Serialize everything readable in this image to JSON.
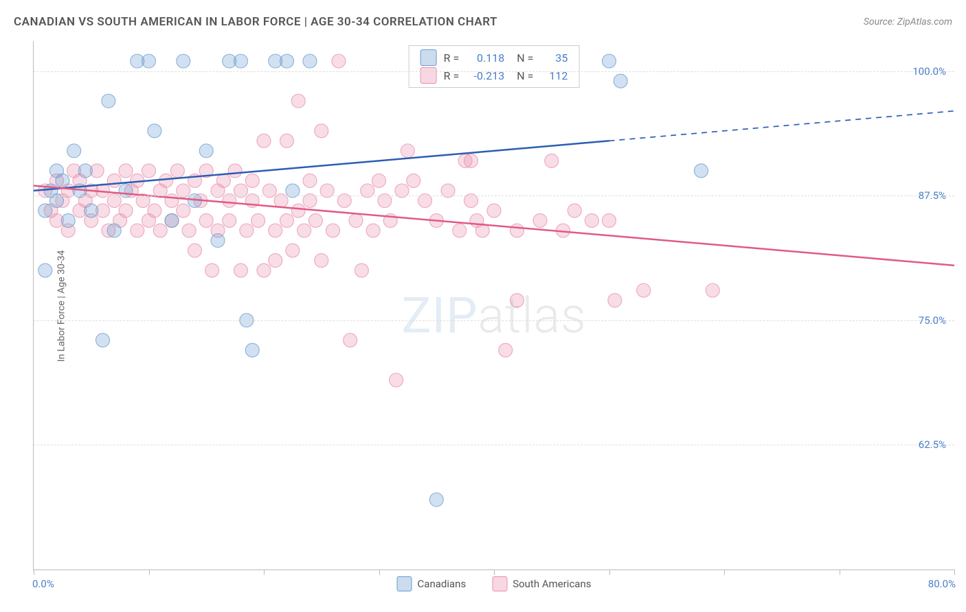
{
  "title": "CANADIAN VS SOUTH AMERICAN IN LABOR FORCE | AGE 30-34 CORRELATION CHART",
  "source_label": "Source: ZipAtlas.com",
  "ylabel": "In Labor Force | Age 30-34",
  "watermark_a": "ZIP",
  "watermark_b": "atlas",
  "chart": {
    "type": "scatter-correlation",
    "xlim": [
      0,
      80
    ],
    "ylim": [
      50,
      103
    ],
    "xticks": [
      0,
      10,
      20,
      30,
      40,
      50,
      60,
      70,
      80
    ],
    "yticks": [
      62.5,
      75.0,
      87.5,
      100.0
    ],
    "ytick_labels": [
      "62.5%",
      "75.0%",
      "87.5%",
      "100.0%"
    ],
    "x_origin_label": "0.0%",
    "x_max_label": "80.0%",
    "grid_color": "#dddddd",
    "axis_color": "#bbbbbb",
    "accent_color": "#4a7ec9",
    "background_color": "#ffffff",
    "marker_radius": 10,
    "marker_fill_opacity": 0.3,
    "marker_stroke_opacity": 0.7,
    "marker_stroke_width": 1.2,
    "line_width": 2.5,
    "series": [
      {
        "name": "Canadians",
        "color": "#6b9ad1",
        "line_color": "#2b5db3",
        "R": "0.118",
        "N": "35",
        "trend": {
          "x1": 0,
          "y1": 88.0,
          "x2": 50,
          "y2": 93.0,
          "dash_x2": 80,
          "dash_y2": 96.0
        },
        "points": [
          [
            1,
            86
          ],
          [
            1.5,
            88
          ],
          [
            2,
            87
          ],
          [
            2,
            90
          ],
          [
            2.5,
            89
          ],
          [
            3,
            85
          ],
          [
            3.5,
            92
          ],
          [
            4,
            88
          ],
          [
            4.5,
            90
          ],
          [
            5,
            86
          ],
          [
            6,
            73
          ],
          [
            6.5,
            97
          ],
          [
            7,
            84
          ],
          [
            8,
            88
          ],
          [
            9,
            101
          ],
          [
            10,
            101
          ],
          [
            10.5,
            94
          ],
          [
            12,
            85
          ],
          [
            13,
            101
          ],
          [
            14,
            87
          ],
          [
            15,
            92
          ],
          [
            16,
            83
          ],
          [
            17,
            101
          ],
          [
            18,
            101
          ],
          [
            18.5,
            75
          ],
          [
            19,
            72
          ],
          [
            21,
            101
          ],
          [
            22,
            101
          ],
          [
            22.5,
            88
          ],
          [
            24,
            101
          ],
          [
            35,
            57
          ],
          [
            50,
            101
          ],
          [
            51,
            99
          ],
          [
            58,
            90
          ],
          [
            1,
            80
          ]
        ]
      },
      {
        "name": "South Americans",
        "color": "#e890ac",
        "line_color": "#e15a84",
        "R": "-0.213",
        "N": "112",
        "trend": {
          "x1": 0,
          "y1": 88.5,
          "x2": 80,
          "y2": 80.5
        },
        "points": [
          [
            1,
            88
          ],
          [
            1.5,
            86
          ],
          [
            2,
            89
          ],
          [
            2,
            85
          ],
          [
            2.5,
            87
          ],
          [
            3,
            88
          ],
          [
            3,
            84
          ],
          [
            3.5,
            90
          ],
          [
            4,
            86
          ],
          [
            4,
            89
          ],
          [
            4.5,
            87
          ],
          [
            5,
            88
          ],
          [
            5,
            85
          ],
          [
            5.5,
            90
          ],
          [
            6,
            86
          ],
          [
            6,
            88
          ],
          [
            6.5,
            84
          ],
          [
            7,
            89
          ],
          [
            7,
            87
          ],
          [
            7.5,
            85
          ],
          [
            8,
            90
          ],
          [
            8,
            86
          ],
          [
            8.5,
            88
          ],
          [
            9,
            84
          ],
          [
            9,
            89
          ],
          [
            9.5,
            87
          ],
          [
            10,
            85
          ],
          [
            10,
            90
          ],
          [
            10.5,
            86
          ],
          [
            11,
            88
          ],
          [
            11,
            84
          ],
          [
            11.5,
            89
          ],
          [
            12,
            87
          ],
          [
            12,
            85
          ],
          [
            12.5,
            90
          ],
          [
            13,
            86
          ],
          [
            13,
            88
          ],
          [
            13.5,
            84
          ],
          [
            14,
            89
          ],
          [
            14,
            82
          ],
          [
            14.5,
            87
          ],
          [
            15,
            85
          ],
          [
            15,
            90
          ],
          [
            15.5,
            80
          ],
          [
            16,
            88
          ],
          [
            16,
            84
          ],
          [
            16.5,
            89
          ],
          [
            17,
            87
          ],
          [
            17,
            85
          ],
          [
            17.5,
            90
          ],
          [
            18,
            80
          ],
          [
            18,
            88
          ],
          [
            18.5,
            84
          ],
          [
            19,
            89
          ],
          [
            19,
            87
          ],
          [
            19.5,
            85
          ],
          [
            20,
            93
          ],
          [
            20,
            80
          ],
          [
            20.5,
            88
          ],
          [
            21,
            84
          ],
          [
            21,
            81
          ],
          [
            21.5,
            87
          ],
          [
            22,
            93
          ],
          [
            22,
            85
          ],
          [
            22.5,
            82
          ],
          [
            23,
            86
          ],
          [
            23,
            97
          ],
          [
            23.5,
            84
          ],
          [
            24,
            89
          ],
          [
            24,
            87
          ],
          [
            24.5,
            85
          ],
          [
            25,
            81
          ],
          [
            25,
            94
          ],
          [
            25.5,
            88
          ],
          [
            26,
            84
          ],
          [
            26.5,
            101
          ],
          [
            27,
            87
          ],
          [
            27.5,
            73
          ],
          [
            28,
            85
          ],
          [
            28.5,
            80
          ],
          [
            29,
            88
          ],
          [
            29.5,
            84
          ],
          [
            30,
            89
          ],
          [
            30.5,
            87
          ],
          [
            31,
            85
          ],
          [
            31.5,
            69
          ],
          [
            32,
            88
          ],
          [
            32.5,
            92
          ],
          [
            33,
            89
          ],
          [
            34,
            87
          ],
          [
            35,
            85
          ],
          [
            35.5,
            101
          ],
          [
            36,
            88
          ],
          [
            37,
            84
          ],
          [
            37.5,
            91
          ],
          [
            38,
            87
          ],
          [
            38.5,
            85
          ],
          [
            39,
            84
          ],
          [
            40,
            86
          ],
          [
            41,
            72
          ],
          [
            42,
            77
          ],
          [
            44,
            85
          ],
          [
            45,
            91
          ],
          [
            47,
            86
          ],
          [
            50,
            85
          ],
          [
            50.5,
            77
          ],
          [
            38,
            91
          ],
          [
            42,
            84
          ],
          [
            46,
            84
          ],
          [
            48.5,
            85
          ],
          [
            53,
            78
          ],
          [
            59,
            78
          ]
        ]
      }
    ],
    "legend": [
      {
        "label": "Canadians",
        "color": "#6b9ad1"
      },
      {
        "label": "South Americans",
        "color": "#e890ac"
      }
    ]
  }
}
